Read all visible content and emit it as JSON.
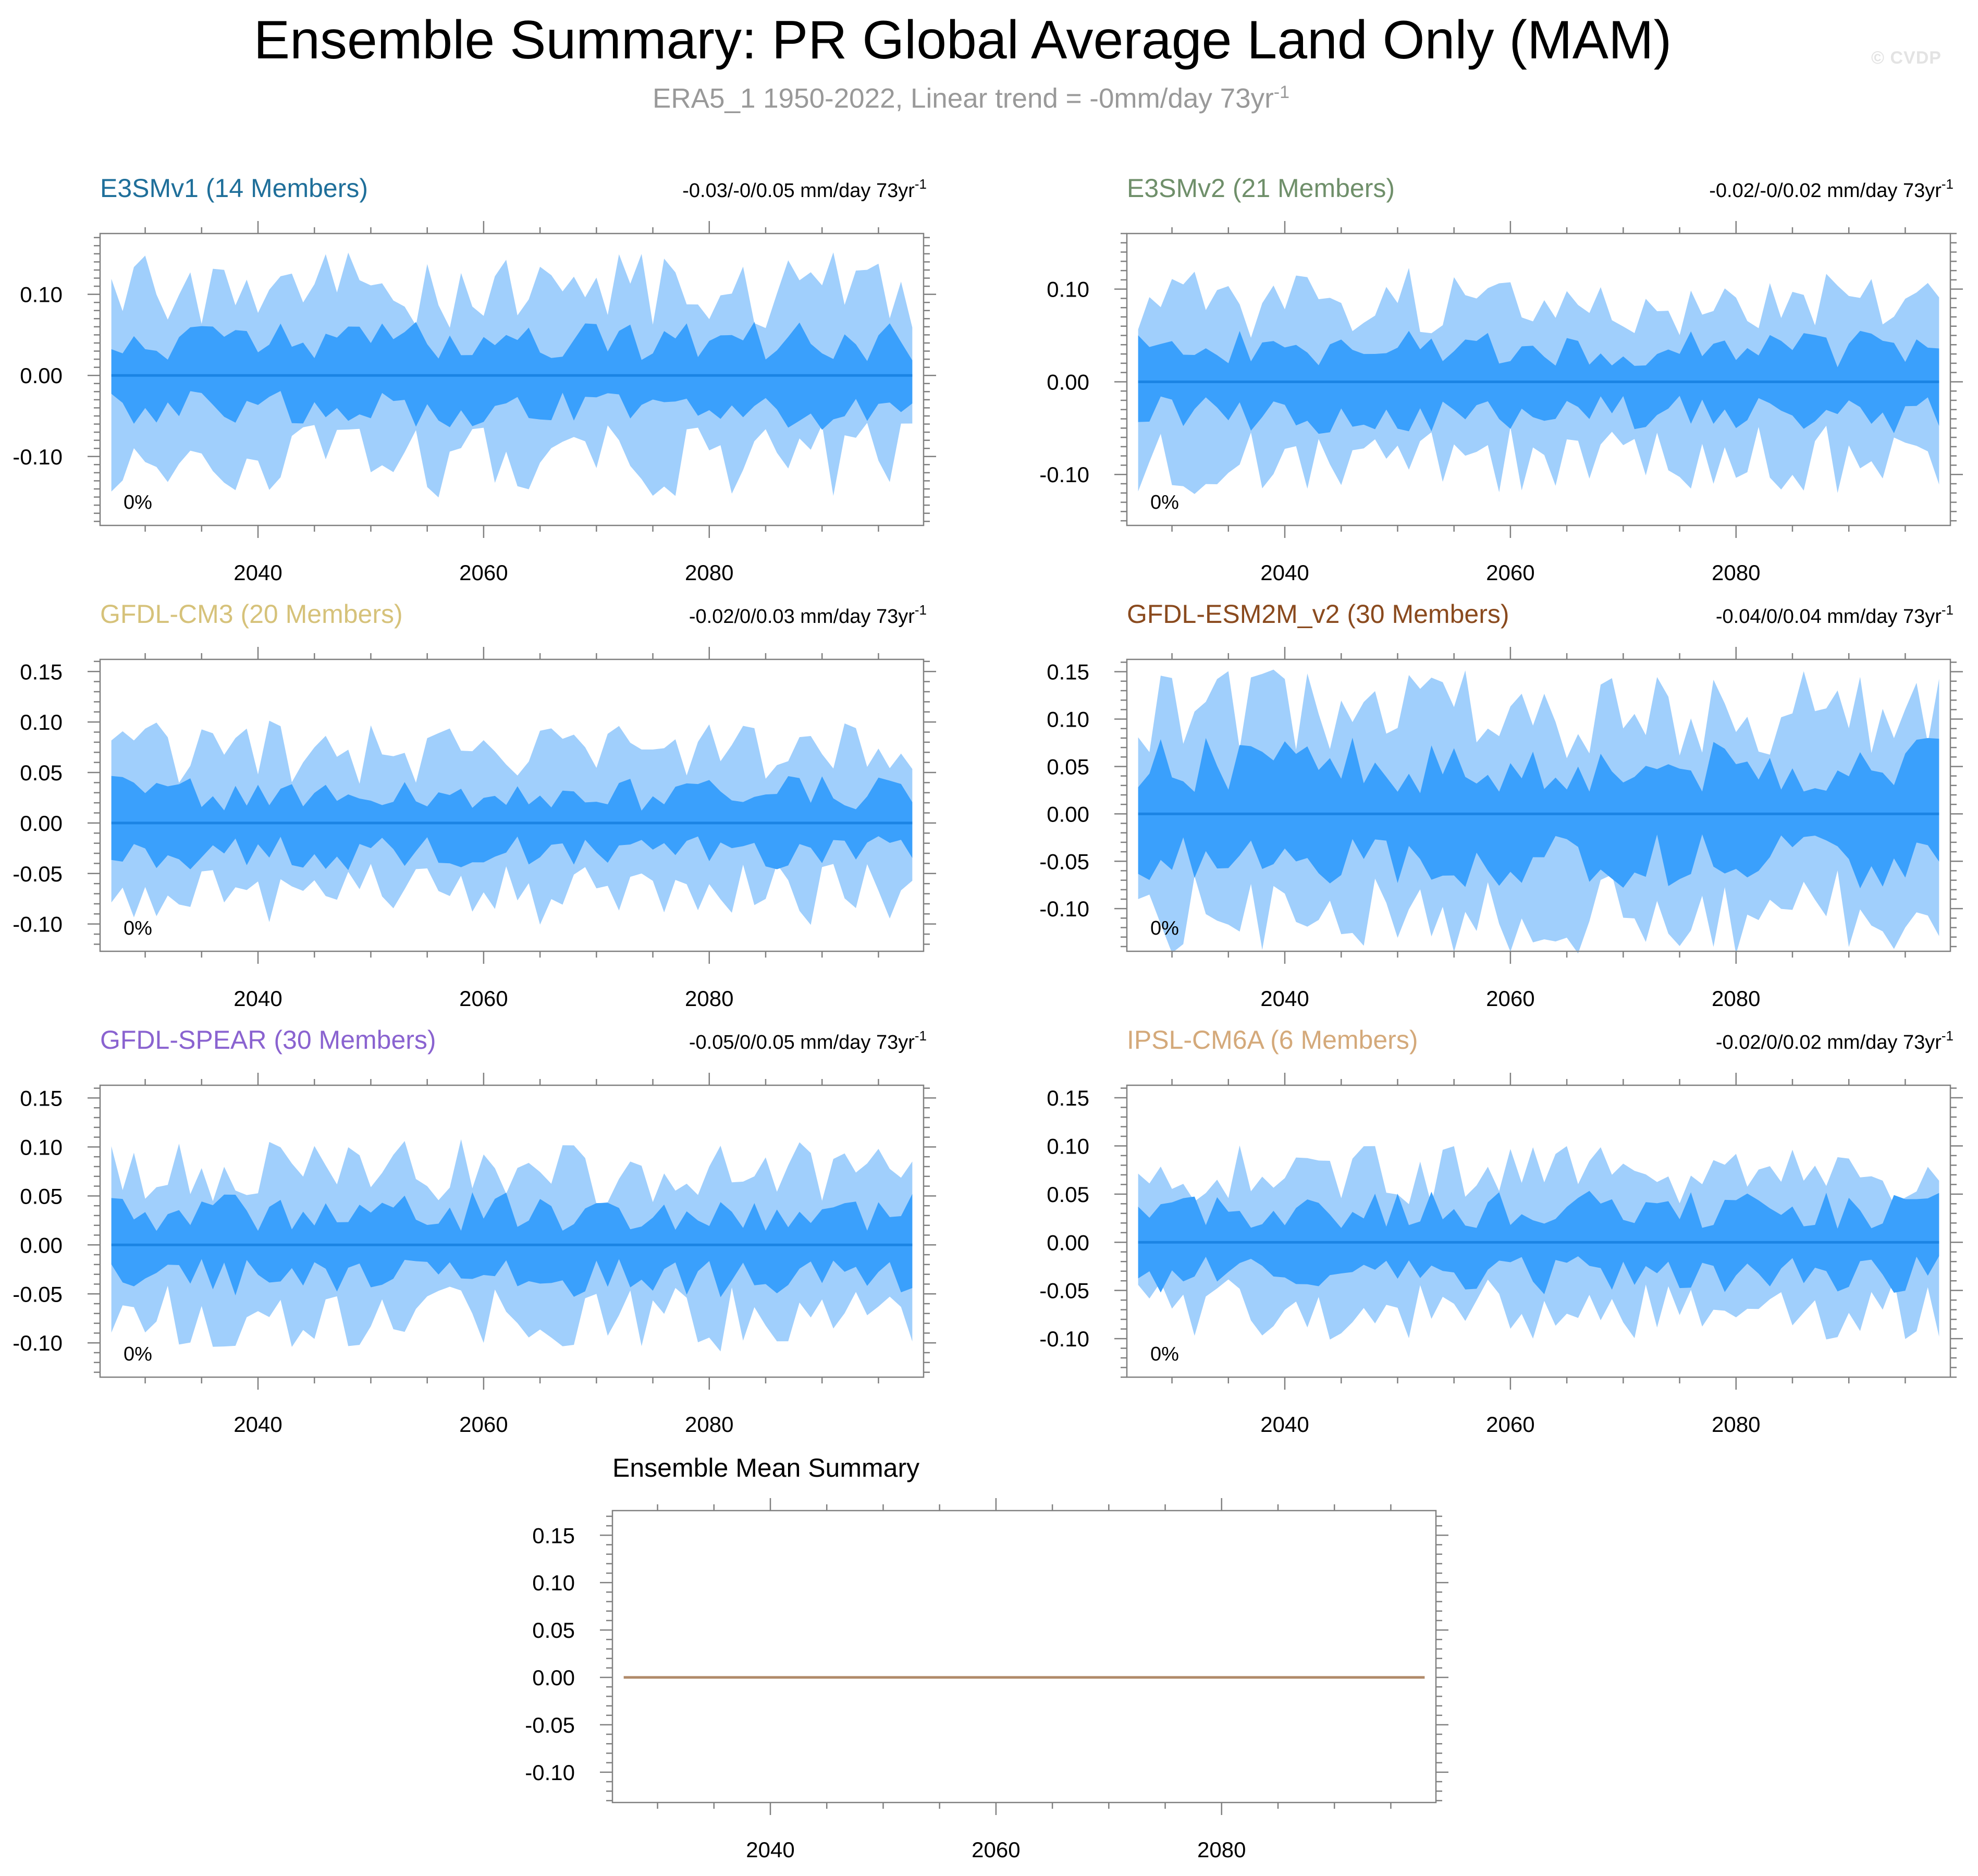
{
  "figure": {
    "title": "Ensemble Summary: PR Global Average Land Only (MAM)",
    "subtitle": "ERA5_1 1950-2022, Linear trend = -0mm/day 73yr",
    "subtitle_sup": "-1",
    "watermark": "© CVDP"
  },
  "colors": {
    "outer_band": "#a0cffc",
    "inner_band": "#3aa0fc",
    "median_line": "#1b84e4",
    "axis": "#808080",
    "ensemble_mean_line": "#b08a6a"
  },
  "chart_data": [
    {
      "type": "area",
      "panel": "E3SMv1",
      "title": "E3SMv1 (14 Members)",
      "title_color": "#1f6f9a",
      "trend_label": "-0.03/-0/0.05 mm/day 73yr",
      "trend_sup": "-1",
      "percent_label": "0%",
      "xlim": [
        2026,
        2099
      ],
      "xticks": [
        2040,
        2060,
        2080
      ],
      "xticklabels": [
        "2040",
        "2060",
        "2080"
      ],
      "ylim": [
        -0.185,
        0.175
      ],
      "yticks": [
        -0.1,
        0.0,
        0.1
      ],
      "yticklabels": [
        "-0.10",
        "0.00",
        "0.10"
      ],
      "outer_amp": 0.105,
      "inner_amp": 0.05,
      "seed": 11,
      "grid": false
    },
    {
      "type": "area",
      "panel": "E3SMv2",
      "title": "E3SMv2 (21 Members)",
      "title_color": "#6f8f6a",
      "trend_label": "-0.02/-0/0.02 mm/day 73yr",
      "trend_sup": "-1",
      "percent_label": "0%",
      "xlim": [
        2026,
        2099
      ],
      "xticks": [
        2040,
        2060,
        2080
      ],
      "xticklabels": [
        "2040",
        "2060",
        "2080"
      ],
      "ylim": [
        -0.155,
        0.16
      ],
      "yticks": [
        -0.1,
        0.0,
        0.1
      ],
      "yticklabels": [
        "-0.10",
        "0.00",
        "0.10"
      ],
      "outer_amp": 0.085,
      "inner_amp": 0.042,
      "seed": 23,
      "grid": false
    },
    {
      "type": "area",
      "panel": "GFDL-CM3",
      "title": "GFDL-CM3 (20 Members)",
      "title_color": "#d6c27a",
      "trend_label": "-0.02/0/0.03 mm/day 73yr",
      "trend_sup": "-1",
      "percent_label": "0%",
      "xlim": [
        2026,
        2099
      ],
      "xticks": [
        2040,
        2060,
        2080
      ],
      "xticklabels": [
        "2040",
        "2060",
        "2080"
      ],
      "ylim": [
        -0.127,
        0.162
      ],
      "yticks": [
        -0.1,
        -0.05,
        0.0,
        0.05,
        0.1,
        0.15
      ],
      "yticklabels": [
        "-0.10",
        "-0.05",
        "0.00",
        "0.05",
        "0.10",
        "0.15"
      ],
      "outer_amp": 0.07,
      "inner_amp": 0.035,
      "seed": 37,
      "grid": false
    },
    {
      "type": "area",
      "panel": "GFDL-ESM2M_v2",
      "title": "GFDL-ESM2M_v2 (30 Members)",
      "title_color": "#8a4a1e",
      "trend_label": "-0.04/0/0.04 mm/day 73yr",
      "trend_sup": "-1",
      "percent_label": "0%",
      "xlim": [
        2026,
        2099
      ],
      "xticks": [
        2040,
        2060,
        2080
      ],
      "xticklabels": [
        "2040",
        "2060",
        "2080"
      ],
      "ylim": [
        -0.145,
        0.163
      ],
      "yticks": [
        -0.1,
        -0.05,
        0.0,
        0.05,
        0.1,
        0.15
      ],
      "yticklabels": [
        "-0.10",
        "-0.05",
        "0.00",
        "0.05",
        "0.10",
        "0.15"
      ],
      "outer_amp": 0.105,
      "inner_amp": 0.06,
      "seed": 51,
      "grid": false
    },
    {
      "type": "area",
      "panel": "GFDL-SPEAR",
      "title": "GFDL-SPEAR (30 Members)",
      "title_color": "#8a63d0",
      "trend_label": "-0.05/0/0.05 mm/day 73yr",
      "trend_sup": "-1",
      "percent_label": "0%",
      "xlim": [
        2026,
        2099
      ],
      "xticks": [
        2040,
        2060,
        2080
      ],
      "xticklabels": [
        "2040",
        "2060",
        "2080"
      ],
      "ylim": [
        -0.135,
        0.163
      ],
      "yticks": [
        -0.1,
        -0.05,
        0.0,
        0.05,
        0.1,
        0.15
      ],
      "yticklabels": [
        "-0.10",
        "-0.05",
        "0.00",
        "0.05",
        "0.10",
        "0.15"
      ],
      "outer_amp": 0.075,
      "inner_amp": 0.04,
      "seed": 67,
      "grid": false
    },
    {
      "type": "area",
      "panel": "IPSL-CM6A",
      "title": "IPSL-CM6A (6 Members)",
      "title_color": "#d4a97a",
      "trend_label": "-0.02/0/0.02 mm/day 73yr",
      "trend_sup": "-1",
      "percent_label": "0%",
      "xlim": [
        2026,
        2099
      ],
      "xticks": [
        2040,
        2060,
        2080
      ],
      "xticklabels": [
        "2040",
        "2060",
        "2080"
      ],
      "ylim": [
        -0.14,
        0.163
      ],
      "yticks": [
        -0.1,
        -0.05,
        0.0,
        0.05,
        0.1,
        0.15
      ],
      "yticklabels": [
        "-0.10",
        "-0.05",
        "0.00",
        "0.05",
        "0.10",
        "0.15"
      ],
      "outer_amp": 0.07,
      "inner_amp": 0.04,
      "seed": 83,
      "grid": false
    },
    {
      "type": "line",
      "panel": "Ensemble Mean",
      "title": "Ensemble Mean Summary",
      "xlim": [
        2026,
        2099
      ],
      "xticks": [
        2040,
        2060,
        2080
      ],
      "xticklabels": [
        "2040",
        "2060",
        "2080"
      ],
      "ylim": [
        -0.132,
        0.176
      ],
      "yticks": [
        -0.1,
        -0.05,
        0.0,
        0.05,
        0.1,
        0.15
      ],
      "yticklabels": [
        "-0.10",
        "-0.05",
        "0.00",
        "0.05",
        "0.10",
        "0.15"
      ],
      "series": [
        {
          "x": [
            2027,
            2098
          ],
          "values": [
            0.0,
            0.0
          ]
        }
      ],
      "grid": false
    }
  ]
}
